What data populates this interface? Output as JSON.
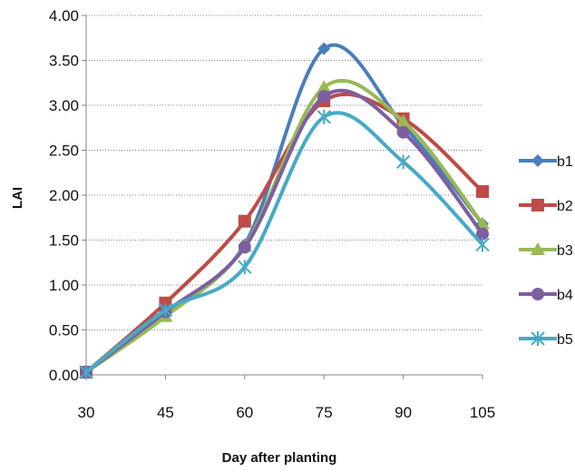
{
  "chart_data": {
    "type": "line",
    "title": "",
    "xlabel": "Day after planting",
    "ylabel": "LAI",
    "x": [
      30,
      45,
      60,
      75,
      90,
      105
    ],
    "x_tick_labels": [
      "30",
      "45",
      "60",
      "75",
      "90",
      "105"
    ],
    "y_tick_labels": [
      "0.00",
      "0.50",
      "1.00",
      "1.50",
      "2.00",
      "2.50",
      "3.00",
      "3.50",
      "4.00"
    ],
    "ylim": [
      0,
      4
    ],
    "grid": "horizontal dotted",
    "legend_position": "right",
    "series": [
      {
        "name": "b1",
        "values": [
          0.03,
          0.7,
          1.45,
          3.63,
          2.78,
          1.68
        ],
        "color": "#4A7EBB",
        "marker": "diamond"
      },
      {
        "name": "b2",
        "values": [
          0.03,
          0.8,
          1.71,
          3.05,
          2.85,
          2.04
        ],
        "color": "#BE4B48",
        "marker": "square"
      },
      {
        "name": "b3",
        "values": [
          0.03,
          0.65,
          1.43,
          3.2,
          2.82,
          1.68
        ],
        "color": "#98B954",
        "marker": "triangle"
      },
      {
        "name": "b4",
        "values": [
          0.03,
          0.7,
          1.42,
          3.1,
          2.7,
          1.57
        ],
        "color": "#7D5FA0",
        "marker": "circle"
      },
      {
        "name": "b5",
        "values": [
          0.03,
          0.72,
          1.2,
          2.87,
          2.37,
          1.45
        ],
        "color": "#46AAC5",
        "marker": "star"
      }
    ]
  }
}
